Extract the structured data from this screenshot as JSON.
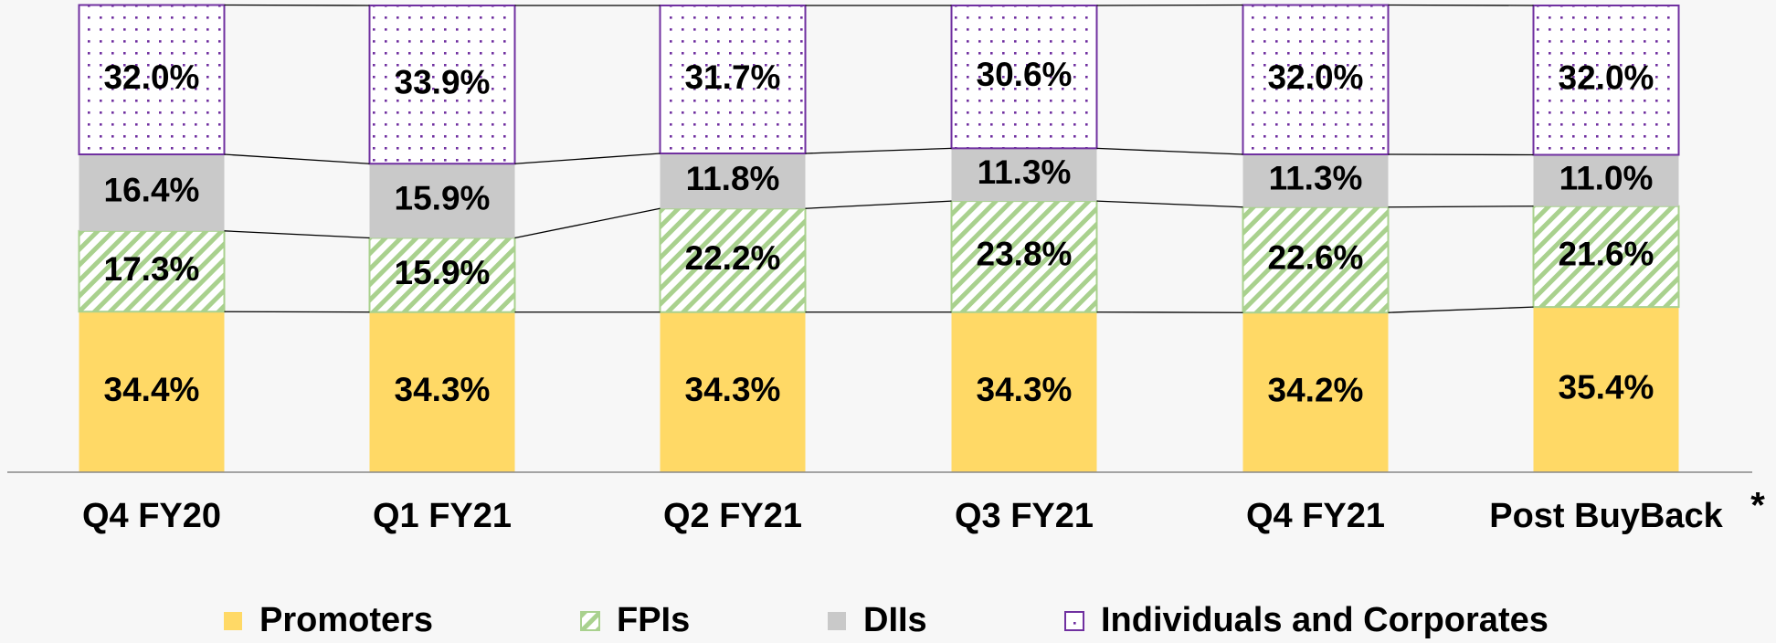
{
  "chart_data": {
    "type": "stacked_bar",
    "categories": [
      "Q4 FY20",
      "Q1 FY21",
      "Q2 FY21",
      "Q3 FY21",
      "Q4 FY21",
      "Post BuyBack"
    ],
    "annotation": "*",
    "ylim": [
      0,
      100
    ],
    "series": [
      {
        "name": "Promoters",
        "color": "#ffd966",
        "pattern": "solid",
        "values": [
          34.4,
          34.3,
          34.3,
          34.3,
          34.2,
          35.4
        ],
        "value_labels": [
          "34.4%",
          "34.3%",
          "34.3%",
          "34.3%",
          "34.2%",
          "35.4%"
        ]
      },
      {
        "name": "FPIs",
        "color": "#a9d18e",
        "pattern": "stripes",
        "values": [
          17.3,
          15.9,
          22.2,
          23.8,
          22.6,
          21.6
        ],
        "value_labels": [
          "17.3%",
          "15.9%",
          "22.2%",
          "23.8%",
          "22.6%",
          "21.6%"
        ]
      },
      {
        "name": "DIIs",
        "color": "#c9c9c9",
        "pattern": "solid",
        "values": [
          16.4,
          15.9,
          11.8,
          11.3,
          11.3,
          11.0
        ],
        "value_labels": [
          "16.4%",
          "15.9%",
          "11.8%",
          "11.3%",
          "11.3%",
          "11.0%"
        ]
      },
      {
        "name": "Individuals and Corporates",
        "color": "#7030a0",
        "pattern": "dots",
        "values": [
          32.0,
          33.9,
          31.7,
          30.6,
          32.0,
          32.0
        ],
        "value_labels": [
          "32.0%",
          "33.9%",
          "31.7%",
          "30.6%",
          "32.0%",
          "32.0%"
        ]
      }
    ]
  }
}
